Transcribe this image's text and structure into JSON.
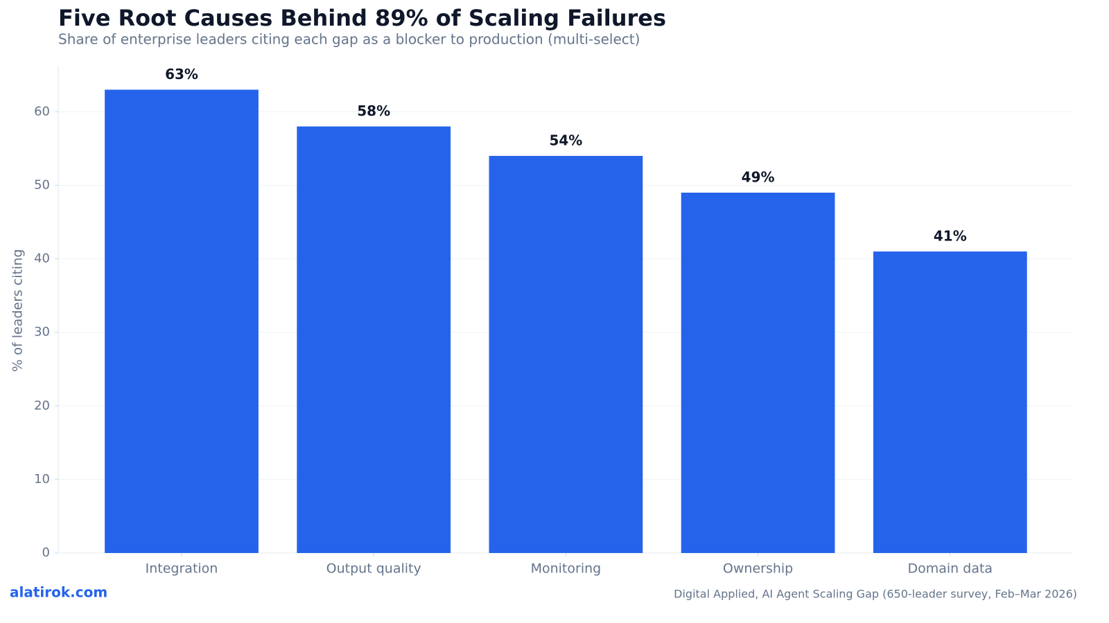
{
  "chart_data": {
    "type": "bar",
    "title": "Five Root Causes Behind 89% of Scaling Failures",
    "subtitle": "Share of enterprise leaders citing each gap as a blocker to production (multi-select)",
    "y_label": "% of leaders citing",
    "categories": [
      "Integration",
      "Output quality",
      "Monitoring",
      "Ownership",
      "Domain data"
    ],
    "values": [
      63,
      58,
      54,
      49,
      41
    ],
    "value_labels": [
      "63%",
      "58%",
      "54%",
      "49%",
      "41%"
    ],
    "color": "#2563eb",
    "ylim": [
      0,
      66.15
    ],
    "yticks": [
      0,
      10,
      20,
      30,
      40,
      50,
      60
    ],
    "grid": true,
    "brand": "alatirok.com",
    "source": "Digital Applied, AI Agent Scaling Gap (650-leader survey, Feb–Mar 2026)"
  }
}
